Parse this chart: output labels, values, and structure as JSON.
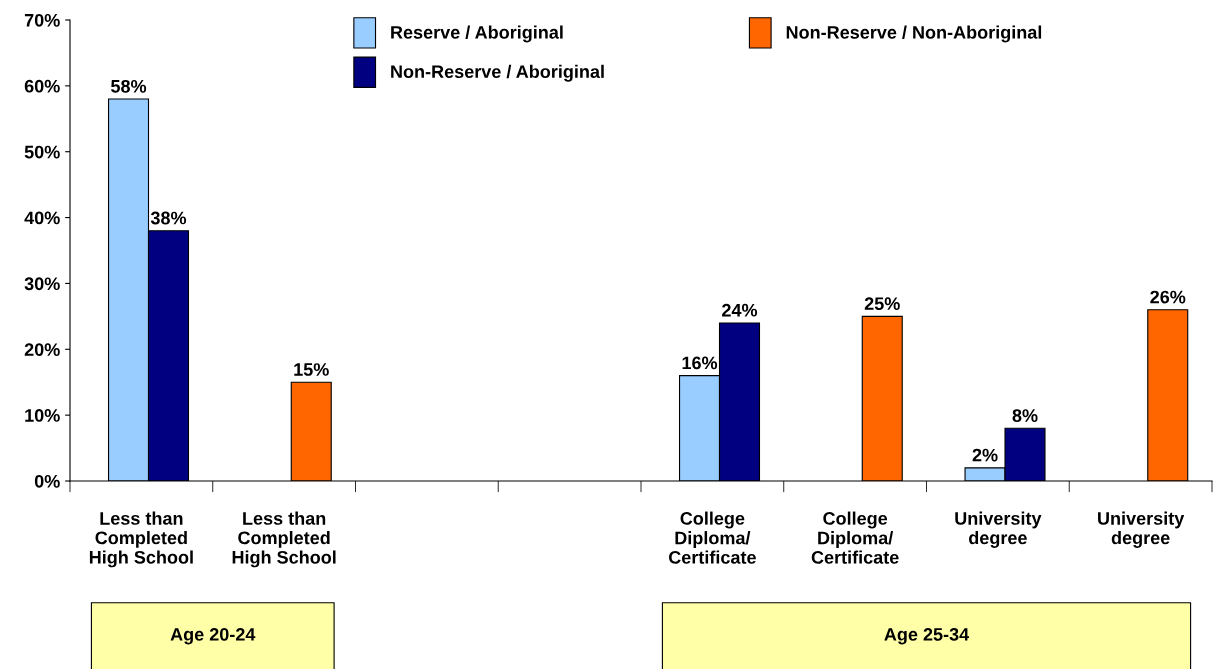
{
  "chart_data": {
    "type": "bar",
    "categories": [
      "Less than\nCompleted\nHigh School",
      "Less than\nCompleted\nHigh School",
      null,
      null,
      "College\nDiploma/\nCertificate",
      "College\nDiploma/\nCertificate",
      "University\ndegree",
      "University\ndegree"
    ],
    "series": [
      {
        "name": "Reserve / Aboriginal",
        "color": "#99ccff",
        "values": [
          58,
          null,
          null,
          null,
          16,
          null,
          2,
          null
        ],
        "value_labels": [
          "58%",
          null,
          null,
          null,
          "16%",
          null,
          "2%",
          null
        ]
      },
      {
        "name": "Non-Reserve / Aboriginal",
        "color": "#000080",
        "values": [
          38,
          null,
          null,
          null,
          24,
          null,
          8,
          null
        ],
        "value_labels": [
          "38%",
          null,
          null,
          null,
          "24%",
          null,
          "8%",
          null
        ]
      },
      {
        "name": "Non-Reserve / Non-Aboriginal",
        "color": "#ff6600",
        "values": [
          null,
          15,
          null,
          null,
          null,
          25,
          null,
          26
        ],
        "value_labels": [
          null,
          "15%",
          null,
          null,
          null,
          "25%",
          null,
          "26%"
        ]
      }
    ],
    "ylim": [
      0,
      70
    ],
    "yticks": [
      {
        "value": 0,
        "label": "0%"
      },
      {
        "value": 10,
        "label": "10%"
      },
      {
        "value": 20,
        "label": "20%"
      },
      {
        "value": 30,
        "label": "30%"
      },
      {
        "value": 40,
        "label": "40%"
      },
      {
        "value": 50,
        "label": "50%"
      },
      {
        "value": 60,
        "label": "60%"
      },
      {
        "value": 70,
        "label": "70%"
      }
    ],
    "annotations": [
      "Age 20-24",
      "Age 25-34"
    ],
    "grid": false,
    "legend": "top"
  }
}
